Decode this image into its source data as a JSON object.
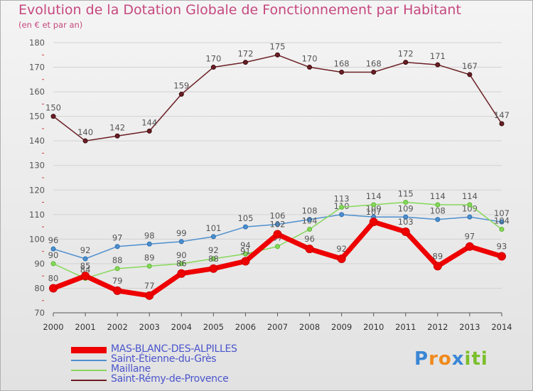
{
  "title": "Evolution de la Dotation Globale de Fonctionnement par Habitant",
  "subtitle": "(en € et par an)",
  "logo": {
    "text": "Proxiti",
    "letters": [
      {
        "ch": "P",
        "color": "#3a86d6"
      },
      {
        "ch": "r",
        "color": "#f08a1c"
      },
      {
        "ch": "o",
        "color": "#f08a1c"
      },
      {
        "ch": "x",
        "color": "#3a86d6"
      },
      {
        "ch": "i",
        "color": "#7bbf2a"
      },
      {
        "ch": "t",
        "color": "#7bbf2a"
      },
      {
        "ch": "i",
        "color": "#7bbf2a"
      }
    ]
  },
  "chart_data": {
    "type": "line",
    "title": "Evolution de la Dotation Globale de Fonctionnement par Habitant",
    "subtitle": "(en € et par an)",
    "xlabel": "",
    "ylabel": "",
    "ylim": [
      70,
      180
    ],
    "yticks": [
      70,
      80,
      90,
      100,
      110,
      120,
      130,
      140,
      150,
      160,
      170,
      180
    ],
    "grid": true,
    "legend_position": "bottom-left",
    "categories": [
      "2000",
      "2001",
      "2002",
      "2003",
      "2004",
      "2005",
      "2006",
      "2007",
      "2008",
      "2009",
      "2010",
      "2011",
      "2012",
      "2013",
      "2014"
    ],
    "series": [
      {
        "name": "Saint-Rémy-de-Provence",
        "color": "#6b1f24",
        "values": [
          150,
          140,
          142,
          144,
          159,
          170,
          172,
          175,
          170,
          168,
          168,
          172,
          171,
          167,
          147
        ],
        "labels": [
          "150",
          "140",
          "142",
          "144",
          "159",
          "170",
          "172",
          "175",
          "170",
          "168",
          "168",
          "172",
          "171",
          "167",
          "147"
        ]
      },
      {
        "name": "Saint-Étienne-du-Grès",
        "color": "#4d8fcf",
        "values": [
          96,
          92,
          97,
          98,
          99,
          101,
          105,
          106,
          108,
          110,
          109,
          109,
          108,
          109,
          107
        ],
        "labels": [
          "96",
          "92",
          "97",
          "98",
          "99",
          "101",
          "105",
          "106",
          "108",
          "110",
          "109",
          "109",
          "108",
          "109",
          "107"
        ]
      },
      {
        "name": "Maillane",
        "color": "#86d85a",
        "values": [
          90,
          84,
          88,
          89,
          90,
          92,
          94,
          97,
          104,
          113,
          114,
          115,
          114,
          114,
          104
        ],
        "labels": [
          "90",
          "84",
          "88",
          "89",
          "90",
          "92",
          "94",
          "97",
          "104",
          "113",
          "114",
          "115",
          "114",
          "114",
          "104"
        ]
      },
      {
        "name": "MAS-BLANC-DES-ALPILLES",
        "color": "#ee0000",
        "values": [
          80,
          85,
          79,
          77,
          86,
          88,
          91,
          102,
          96,
          92,
          107,
          103,
          89,
          97,
          93
        ],
        "labels": [
          "80",
          "85",
          "79",
          "77",
          "86",
          "88",
          "91",
          "102",
          "96",
          "92",
          "107",
          "103",
          "89",
          "97",
          "93"
        ]
      }
    ],
    "legend": [
      "MAS-BLANC-DES-ALPILLES",
      "Saint-Étienne-du-Grès",
      "Maillane",
      "Saint-Rémy-de-Provence"
    ]
  }
}
